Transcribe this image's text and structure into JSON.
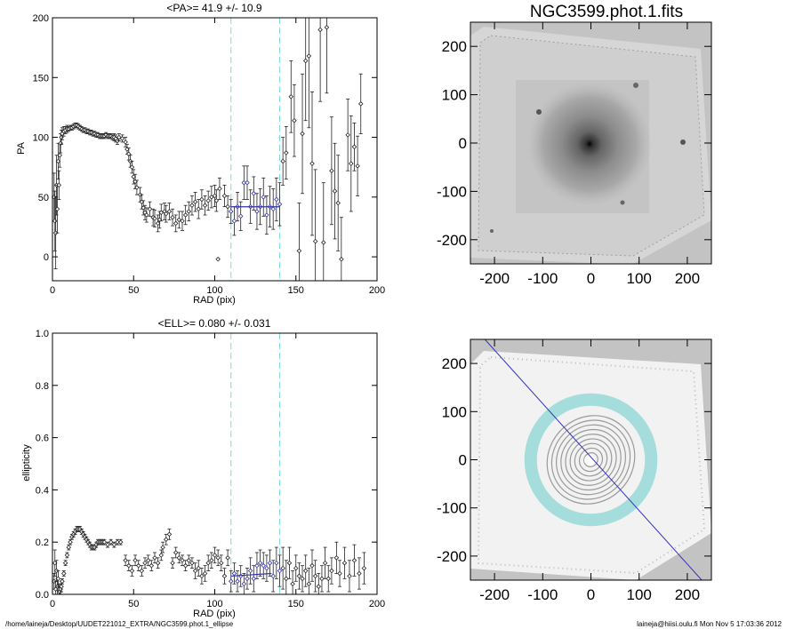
{
  "chart_data": [
    {
      "type": "scatter",
      "title": "<PA>=  41.9 +/-  10.9",
      "xlabel": "RAD (pix)",
      "ylabel": "PA",
      "xlim": [
        0,
        200
      ],
      "ylim": [
        -20,
        200
      ],
      "xticks": [
        0,
        50,
        100,
        150,
        200
      ],
      "yticks": [
        0,
        50,
        100,
        150,
        200
      ],
      "vlines": [
        110,
        140
      ],
      "fit": {
        "x": [
          110,
          140
        ],
        "y": 41.9
      },
      "points": [
        [
          1,
          50,
          20
        ],
        [
          1.5,
          30,
          25
        ],
        [
          2,
          20,
          30
        ],
        [
          2.5,
          60,
          25
        ],
        [
          3,
          40,
          20
        ],
        [
          3.5,
          80,
          15
        ],
        [
          4,
          60,
          12
        ],
        [
          4.5,
          85,
          10
        ],
        [
          5,
          95,
          8
        ],
        [
          5.5,
          100,
          6
        ],
        [
          6,
          103,
          5
        ],
        [
          7,
          105,
          4
        ],
        [
          8,
          106,
          3
        ],
        [
          9,
          107,
          3
        ],
        [
          10,
          107,
          2
        ],
        [
          11,
          108,
          2
        ],
        [
          12,
          108,
          2
        ],
        [
          13,
          109,
          2
        ],
        [
          14,
          110,
          2
        ],
        [
          15,
          110,
          2
        ],
        [
          16,
          109,
          2
        ],
        [
          17,
          108,
          2
        ],
        [
          18,
          107,
          2
        ],
        [
          19,
          106,
          2
        ],
        [
          20,
          106,
          2
        ],
        [
          21,
          105,
          2
        ],
        [
          22,
          105,
          2
        ],
        [
          23,
          104,
          2
        ],
        [
          24,
          104,
          2
        ],
        [
          25,
          103,
          2
        ],
        [
          26,
          103,
          2
        ],
        [
          27,
          102,
          2
        ],
        [
          28,
          102,
          2
        ],
        [
          29,
          101,
          2
        ],
        [
          30,
          101,
          2
        ],
        [
          31,
          101,
          2
        ],
        [
          32,
          101,
          2
        ],
        [
          33,
          102,
          2
        ],
        [
          34,
          101,
          2
        ],
        [
          35,
          101,
          2
        ],
        [
          36,
          101,
          2
        ],
        [
          37,
          100,
          2
        ],
        [
          38,
          100,
          3
        ],
        [
          39,
          99,
          3
        ],
        [
          40,
          97,
          3
        ],
        [
          41,
          100,
          3
        ],
        [
          43,
          99,
          3
        ],
        [
          45,
          96,
          4
        ],
        [
          46,
          90,
          4
        ],
        [
          47,
          86,
          5
        ],
        [
          48,
          80,
          5
        ],
        [
          49,
          75,
          5
        ],
        [
          50,
          67,
          6
        ],
        [
          51,
          63,
          6
        ],
        [
          52,
          58,
          6
        ],
        [
          54,
          52,
          6
        ],
        [
          55,
          46,
          6
        ],
        [
          56,
          41,
          6
        ],
        [
          57,
          37,
          6
        ],
        [
          58,
          35,
          6
        ],
        [
          60,
          40,
          6
        ],
        [
          62,
          33,
          7
        ],
        [
          63,
          32,
          7
        ],
        [
          65,
          28,
          7
        ],
        [
          66,
          31,
          7
        ],
        [
          67,
          37,
          7
        ],
        [
          69,
          38,
          7
        ],
        [
          70,
          36,
          7
        ],
        [
          72,
          38,
          7
        ],
        [
          74,
          33,
          7
        ],
        [
          76,
          28,
          7
        ],
        [
          78,
          31,
          7
        ],
        [
          80,
          30,
          8
        ],
        [
          82,
          35,
          8
        ],
        [
          84,
          38,
          8
        ],
        [
          86,
          43,
          8
        ],
        [
          88,
          46,
          8
        ],
        [
          90,
          40,
          8
        ],
        [
          92,
          48,
          8
        ],
        [
          94,
          43,
          8
        ],
        [
          96,
          47,
          8
        ],
        [
          98,
          50,
          9
        ],
        [
          100,
          51,
          9
        ],
        [
          101,
          47,
          9
        ],
        [
          102,
          -2,
          0
        ],
        [
          103,
          57,
          9
        ],
        [
          106,
          51,
          9
        ],
        [
          108,
          42,
          9
        ],
        [
          110,
          38,
          10
        ],
        [
          112,
          30,
          12
        ],
        [
          114,
          42,
          12
        ],
        [
          116,
          34,
          12
        ],
        [
          118,
          62,
          14
        ],
        [
          120,
          62,
          14
        ],
        [
          122,
          42,
          14
        ],
        [
          124,
          53,
          14
        ],
        [
          126,
          38,
          15
        ],
        [
          128,
          42,
          15
        ],
        [
          130,
          50,
          16
        ],
        [
          132,
          35,
          16
        ],
        [
          134,
          42,
          17
        ],
        [
          136,
          40,
          17
        ],
        [
          138,
          48,
          18
        ],
        [
          140,
          44,
          18
        ],
        [
          142,
          80,
          20
        ],
        [
          144,
          87,
          22
        ],
        [
          147,
          134,
          30
        ],
        [
          149,
          114,
          30
        ],
        [
          152,
          5,
          40
        ],
        [
          154,
          103,
          50
        ],
        [
          156,
          164,
          50
        ],
        [
          158,
          168,
          60
        ],
        [
          160,
          78,
          60
        ],
        [
          162,
          13,
          60
        ],
        [
          165,
          190,
          60
        ],
        [
          167,
          12,
          50
        ],
        [
          169,
          192,
          55
        ],
        [
          172,
          72,
          45
        ],
        [
          174,
          55,
          40
        ],
        [
          176,
          45,
          40
        ],
        [
          178,
          -2,
          35
        ],
        [
          182,
          102,
          30
        ],
        [
          184,
          78,
          40
        ],
        [
          186,
          92,
          20
        ],
        [
          188,
          76,
          25
        ],
        [
          190,
          128,
          25
        ]
      ]
    },
    {
      "type": "scatter",
      "title": "<ELL>= 0.080 +/-  0.031",
      "xlabel": "RAD (pix)",
      "ylabel": "ellipticity",
      "xlim": [
        0,
        200
      ],
      "ylim": [
        0.0,
        1.0
      ],
      "xticks": [
        0,
        50,
        100,
        150,
        200
      ],
      "yticks": [
        0.0,
        0.2,
        0.4,
        0.6,
        0.8,
        1.0
      ],
      "ytick_labels": [
        "0.0",
        "0.2",
        "0.4",
        "0.6",
        "0.8",
        "1.0"
      ],
      "vlines": [
        110,
        140
      ],
      "fit": {
        "x": [
          110,
          135
        ],
        "y0": 0.07,
        "y1": 0.08
      },
      "points": [
        [
          1,
          0.05,
          0.03
        ],
        [
          1.5,
          0.12,
          0.05
        ],
        [
          2,
          0.02,
          0.03
        ],
        [
          2.5,
          0.09,
          0.04
        ],
        [
          3,
          0.03,
          0.03
        ],
        [
          3.5,
          0.06,
          0.03
        ],
        [
          4,
          0.02,
          0.02
        ],
        [
          4.5,
          0.01,
          0.02
        ],
        [
          5,
          0.02,
          0.02
        ],
        [
          5.5,
          0.03,
          0.02
        ],
        [
          6,
          0.05,
          0.01
        ],
        [
          7,
          0.08,
          0.01
        ],
        [
          8,
          0.12,
          0.01
        ],
        [
          9,
          0.15,
          0.01
        ],
        [
          10,
          0.18,
          0.01
        ],
        [
          11,
          0.2,
          0.01
        ],
        [
          12,
          0.22,
          0.01
        ],
        [
          13,
          0.23,
          0.01
        ],
        [
          14,
          0.24,
          0.01
        ],
        [
          15,
          0.25,
          0.01
        ],
        [
          16,
          0.25,
          0.01
        ],
        [
          17,
          0.25,
          0.01
        ],
        [
          18,
          0.24,
          0.01
        ],
        [
          19,
          0.23,
          0.01
        ],
        [
          20,
          0.22,
          0.01
        ],
        [
          21,
          0.21,
          0.01
        ],
        [
          22,
          0.2,
          0.01
        ],
        [
          23,
          0.19,
          0.01
        ],
        [
          24,
          0.18,
          0.01
        ],
        [
          25,
          0.18,
          0.01
        ],
        [
          26,
          0.18,
          0.01
        ],
        [
          27,
          0.19,
          0.01
        ],
        [
          28,
          0.2,
          0.01
        ],
        [
          29,
          0.2,
          0.01
        ],
        [
          30,
          0.2,
          0.01
        ],
        [
          31,
          0.2,
          0.01
        ],
        [
          32,
          0.2,
          0.01
        ],
        [
          34,
          0.19,
          0.01
        ],
        [
          36,
          0.2,
          0.01
        ],
        [
          38,
          0.19,
          0.01
        ],
        [
          40,
          0.2,
          0.01
        ],
        [
          42,
          0.2,
          0.01
        ],
        [
          45,
          0.13,
          0.02
        ],
        [
          47,
          0.11,
          0.02
        ],
        [
          49,
          0.09,
          0.02
        ],
        [
          51,
          0.13,
          0.02
        ],
        [
          53,
          0.11,
          0.02
        ],
        [
          55,
          0.09,
          0.02
        ],
        [
          57,
          0.12,
          0.02
        ],
        [
          59,
          0.13,
          0.02
        ],
        [
          61,
          0.11,
          0.02
        ],
        [
          63,
          0.14,
          0.02
        ],
        [
          65,
          0.12,
          0.02
        ],
        [
          67,
          0.15,
          0.02
        ],
        [
          68,
          0.18,
          0.02
        ],
        [
          70,
          0.21,
          0.02
        ],
        [
          72,
          0.23,
          0.02
        ],
        [
          74,
          0.12,
          0.02
        ],
        [
          76,
          0.16,
          0.02
        ],
        [
          78,
          0.14,
          0.02
        ],
        [
          80,
          0.13,
          0.02
        ],
        [
          82,
          0.11,
          0.02
        ],
        [
          84,
          0.13,
          0.02
        ],
        [
          86,
          0.12,
          0.02
        ],
        [
          88,
          0.09,
          0.03
        ],
        [
          90,
          0.1,
          0.03
        ],
        [
          92,
          0.07,
          0.03
        ],
        [
          94,
          0.08,
          0.03
        ],
        [
          96,
          0.12,
          0.03
        ],
        [
          98,
          0.13,
          0.03
        ],
        [
          100,
          0.15,
          0.03
        ],
        [
          102,
          0.14,
          0.03
        ],
        [
          104,
          0.12,
          0.03
        ],
        [
          106,
          0.07,
          0.03
        ],
        [
          108,
          0.14,
          0.03
        ],
        [
          110,
          0.05,
          0.04
        ],
        [
          112,
          0.08,
          0.04
        ],
        [
          114,
          0.05,
          0.04
        ],
        [
          116,
          0.07,
          0.04
        ],
        [
          118,
          0.04,
          0.04
        ],
        [
          120,
          0.06,
          0.04
        ],
        [
          122,
          0.09,
          0.05
        ],
        [
          124,
          0.06,
          0.05
        ],
        [
          126,
          0.11,
          0.05
        ],
        [
          128,
          0.12,
          0.05
        ],
        [
          130,
          0.11,
          0.05
        ],
        [
          132,
          0.1,
          0.05
        ],
        [
          134,
          0.12,
          0.05
        ],
        [
          136,
          0.07,
          0.06
        ],
        [
          138,
          0.12,
          0.06
        ],
        [
          140,
          0.09,
          0.06
        ],
        [
          142,
          0.1,
          0.08
        ],
        [
          144,
          0.06,
          0.07
        ],
        [
          146,
          0.12,
          0.06
        ],
        [
          148,
          0.04,
          0.05
        ],
        [
          150,
          0.1,
          0.05
        ],
        [
          152,
          0.07,
          0.05
        ],
        [
          154,
          0.06,
          0.05
        ],
        [
          156,
          0.09,
          0.06
        ],
        [
          158,
          0.04,
          0.06
        ],
        [
          160,
          0.11,
          0.06
        ],
        [
          162,
          0.07,
          0.06
        ],
        [
          164,
          0.03,
          0.05
        ],
        [
          166,
          0.06,
          0.05
        ],
        [
          168,
          0.12,
          0.06
        ],
        [
          170,
          0.06,
          0.05
        ],
        [
          172,
          0.09,
          0.05
        ],
        [
          175,
          0.14,
          0.06
        ],
        [
          177,
          0.08,
          0.05
        ],
        [
          180,
          0.12,
          0.06
        ],
        [
          183,
          0.07,
          0.06
        ],
        [
          186,
          0.13,
          0.06
        ],
        [
          189,
          0.08,
          0.06
        ],
        [
          192,
          0.1,
          0.06
        ]
      ]
    },
    {
      "type": "heatmap",
      "title": "NGC3599.phot.1.fits",
      "xlim": [
        -250,
        250
      ],
      "ylim": [
        -250,
        250
      ],
      "xticks": [
        -200,
        -100,
        0,
        100,
        200
      ],
      "yticks": [
        -200,
        -100,
        0,
        100,
        200
      ]
    },
    {
      "type": "heatmap",
      "title": "",
      "xlim": [
        -250,
        250
      ],
      "ylim": [
        -250,
        250
      ],
      "xticks": [
        -200,
        -100,
        0,
        100,
        200
      ],
      "yticks": [
        -200,
        -100,
        0,
        100,
        200
      ],
      "overlay_line": {
        "x": [
          -220,
          230
        ],
        "y": [
          250,
          -250
        ]
      },
      "ring": {
        "r_inner": 110,
        "r_outer": 140
      },
      "contour_radii": [
        15,
        25,
        35,
        45,
        55,
        65,
        75,
        85,
        95
      ]
    }
  ],
  "colors": {
    "points": "#222222",
    "fit": "#3333aa",
    "vline": "#7fdcdc",
    "ring": "#66cccc",
    "overlay_line": "#3333bb"
  },
  "footer": {
    "left": "/home/laineja/Desktop/UUDET221012_EXTRA/NGC3599.phot.1_ellipse",
    "right": "laineja@hiisi.oulu.fi  Mon Nov  5 17:03:36 2012"
  }
}
